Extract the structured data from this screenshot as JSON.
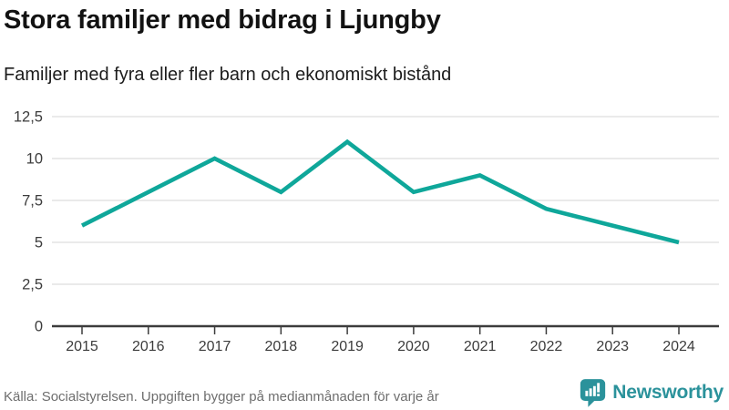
{
  "header": {
    "title": "Stora familjer med bidrag i Ljungby",
    "subtitle": "Familjer med fyra eller fler barn och ekonomiskt bistånd"
  },
  "chart_data": {
    "type": "line",
    "x": [
      "2015",
      "2016",
      "2017",
      "2018",
      "2019",
      "2020",
      "2021",
      "2022",
      "2023",
      "2024"
    ],
    "series": [
      {
        "name": "Familjer med fyra eller fler barn och ekonomiskt bistånd",
        "values": [
          6,
          8,
          10,
          8,
          11,
          8,
          9,
          7,
          6,
          5
        ]
      }
    ],
    "title": "Stora familjer med bidrag i Ljungby",
    "xlabel": "",
    "ylabel": "",
    "ylim": [
      0,
      12.5
    ],
    "yticks": [
      0,
      2.5,
      5,
      7.5,
      10,
      12.5
    ],
    "ytick_labels": [
      "0",
      "2,5",
      "5",
      "7,5",
      "10",
      "12,5"
    ],
    "grid": "horizontal",
    "legend": "none"
  },
  "footer": {
    "source": "Källa: Socialstyrelsen. Uppgiften bygger på medianmånaden för varje år",
    "brand": "Newsworthy"
  },
  "colors": {
    "line": "#0fa79a",
    "grid": "#e4e4e4",
    "axis": "#3c3c3c",
    "tick_text": "#3c3c3c",
    "title_text": "#121212",
    "source_text": "#6e6e6e",
    "brand_teal": "#2b929b",
    "background": "#ffffff"
  }
}
